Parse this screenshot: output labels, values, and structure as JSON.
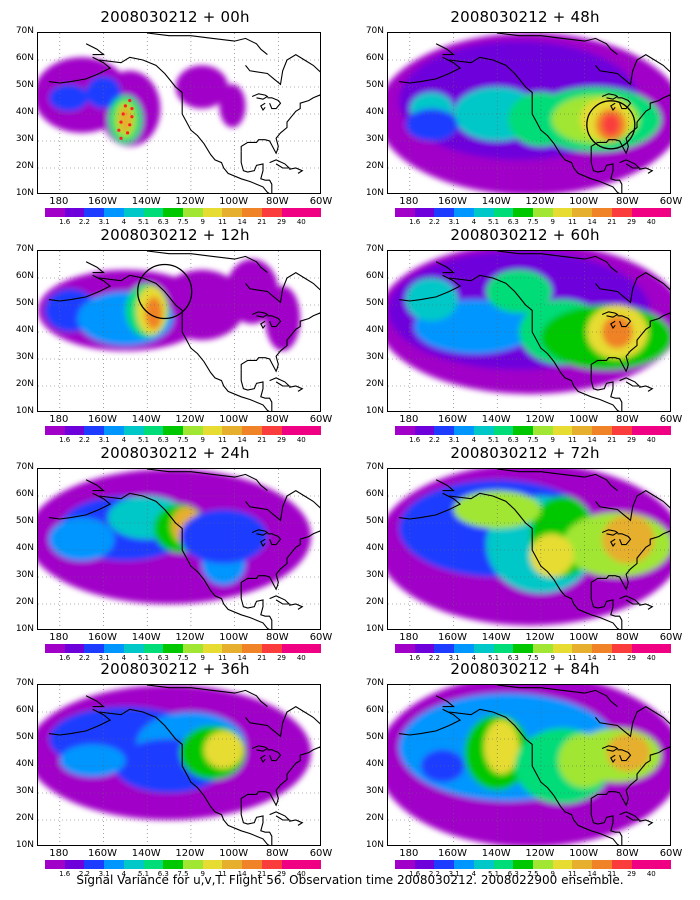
{
  "caption": "Signal Variance for u,v,T. Flight 56. Observation time 2008030212. 2008022900 ensemble.",
  "lat_labels": [
    "70N",
    "60N",
    "50N",
    "40N",
    "30N",
    "20N",
    "10N"
  ],
  "lon_labels": [
    "180",
    "160W",
    "140W",
    "120W",
    "100W",
    "80W",
    "60W"
  ],
  "colorbar": {
    "colors": [
      "#a000c8",
      "#6e00dc",
      "#1e3cff",
      "#0096ff",
      "#00c8c8",
      "#00dc78",
      "#00c800",
      "#a0e632",
      "#e6dc32",
      "#e6af2d",
      "#f08228",
      "#fa3c3c",
      "#f00082"
    ],
    "labels": [
      "1.6",
      "2.2",
      "3.1",
      "4",
      "5.1",
      "6.3",
      "7.5",
      "9",
      "11",
      "14",
      "21",
      "29",
      "40"
    ]
  },
  "panels": [
    {
      "title": "2008030212 + 00h"
    },
    {
      "title": "2008030212 + 48h"
    },
    {
      "title": "2008030212 + 12h"
    },
    {
      "title": "2008030212 + 60h"
    },
    {
      "title": "2008030212 + 24h"
    },
    {
      "title": "2008030212 + 72h"
    },
    {
      "title": "2008030212 + 36h"
    },
    {
      "title": "2008030212 + 84h"
    }
  ]
}
